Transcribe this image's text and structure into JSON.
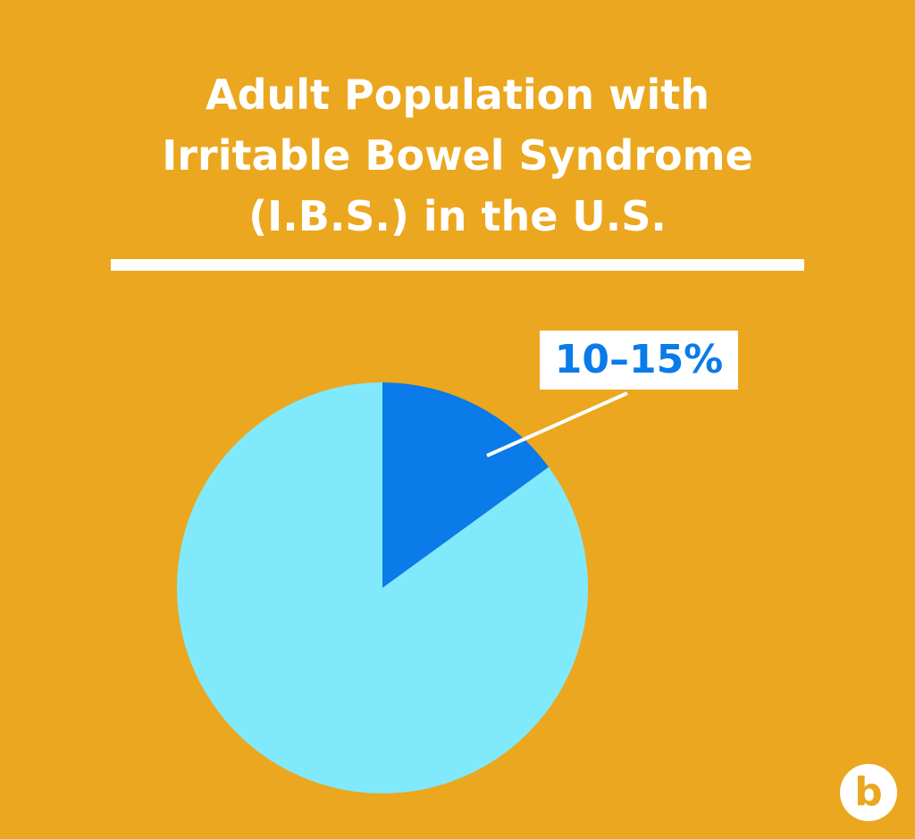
{
  "chart_data": {
    "type": "pie",
    "title": "Adult Population with\nIrritable Bowel Syndrome\n(I.B.S.) in the U.S.",
    "values": [
      15,
      85
    ],
    "value_labels": [
      "10–15%",
      null
    ],
    "colors": [
      "#0a7be8",
      "#80eafc"
    ]
  },
  "logo": "b"
}
